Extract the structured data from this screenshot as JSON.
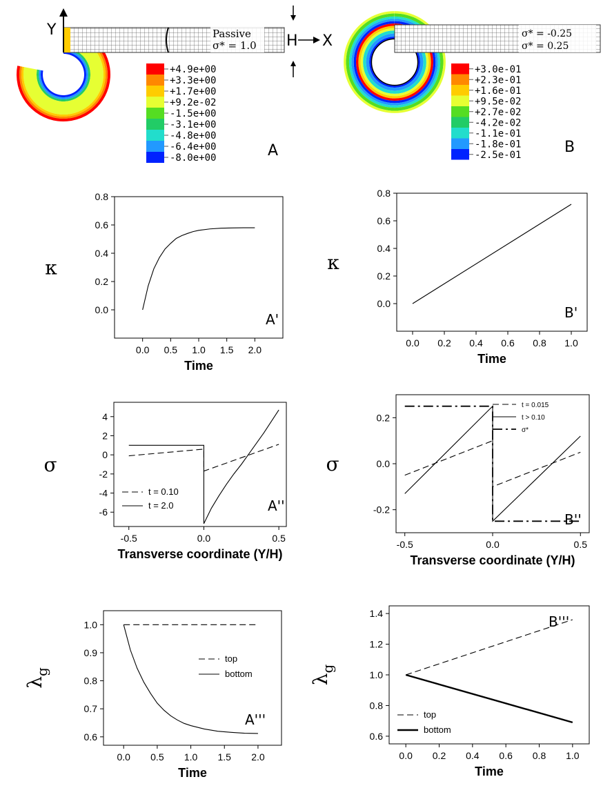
{
  "panels": {
    "A": {
      "label": "A",
      "beam_label": "Passive",
      "beam_sigma": "σ* = 1.0",
      "axis_y": "Y",
      "axis_x": "X",
      "thickness": "H",
      "legend": [
        "+4.9e+00",
        "+3.3e+00",
        "+1.7e+00",
        "+9.2e-02",
        "-1.5e+00",
        "-3.1e+00",
        "-4.8e+00",
        "-6.4e+00",
        "-8.0e+00"
      ]
    },
    "B": {
      "label": "B",
      "beam_sigma_top": "σ* = -0.25",
      "beam_sigma_bottom": "σ* = 0.25",
      "legend": [
        "+3.0e-01",
        "+2.3e-01",
        "+1.6e-01",
        "+9.5e-02",
        "+2.7e-02",
        "-4.2e-02",
        "-1.1e-01",
        "-1.8e-01",
        "-2.5e-01"
      ]
    }
  },
  "colormap": [
    "#ff0000",
    "#ff8800",
    "#ffcc00",
    "#e6ff33",
    "#55dd22",
    "#22cc66",
    "#22ddcc",
    "#2299ff",
    "#0022ff"
  ],
  "chart_data": [
    {
      "id": "A1",
      "panel_label": "A'",
      "type": "line",
      "xlabel": "Time",
      "ylabel": "κ",
      "xlim": [
        -0.5,
        2.5
      ],
      "ylim": [
        -0.2,
        0.8
      ],
      "xticks": [
        "0.0",
        "0.5",
        "1.0",
        "1.5",
        "2.0"
      ],
      "xtick_values": [
        0,
        0.5,
        1,
        1.5,
        2
      ],
      "yticks": [
        "0.0",
        "0.2",
        "0.4",
        "0.6",
        "0.8"
      ],
      "ytick_values": [
        0,
        0.2,
        0.4,
        0.6,
        0.8
      ],
      "series": [
        {
          "style": "solid",
          "x": [
            0,
            0.1,
            0.2,
            0.3,
            0.4,
            0.5,
            0.6,
            0.7,
            0.8,
            0.9,
            1.0,
            1.2,
            1.4,
            1.6,
            1.8,
            2.0
          ],
          "y": [
            0,
            0.17,
            0.29,
            0.37,
            0.43,
            0.47,
            0.505,
            0.525,
            0.54,
            0.553,
            0.562,
            0.572,
            0.577,
            0.579,
            0.58,
            0.58
          ]
        }
      ]
    },
    {
      "id": "B1",
      "panel_label": "B'",
      "type": "line",
      "xlabel": "Time",
      "ylabel": "κ",
      "xlim": [
        -0.1,
        1.1
      ],
      "ylim": [
        -0.2,
        0.8
      ],
      "xticks": [
        "0.0",
        "0.2",
        "0.4",
        "0.6",
        "0.8",
        "1.0"
      ],
      "xtick_values": [
        0,
        0.2,
        0.4,
        0.6,
        0.8,
        1
      ],
      "yticks": [
        "0.0",
        "0.2",
        "0.4",
        "0.6",
        "0.8"
      ],
      "ytick_values": [
        0,
        0.2,
        0.4,
        0.6,
        0.8
      ],
      "series": [
        {
          "style": "solid",
          "x": [
            0,
            1.0
          ],
          "y": [
            0,
            0.72
          ]
        }
      ]
    },
    {
      "id": "A2",
      "panel_label": "A''",
      "type": "line",
      "xlabel": "Transverse coordinate (Y/H)",
      "ylabel": "σ",
      "xlim": [
        -0.6,
        0.55
      ],
      "ylim": [
        -7.5,
        5.5
      ],
      "xticks": [
        "-0.5",
        "0.0",
        "0.5"
      ],
      "xtick_values": [
        -0.5,
        0,
        0.5
      ],
      "yticks": [
        "-6",
        "-4",
        "-2",
        "0",
        "2",
        "4"
      ],
      "ytick_values": [
        -6,
        -4,
        -2,
        0,
        2,
        4
      ],
      "legend_position": "lower-left",
      "series": [
        {
          "name": "t = 0.10",
          "style": "dashed",
          "x": [
            -0.5,
            0,
            0,
            0.5
          ],
          "y": [
            -0.1,
            0.6,
            -1.7,
            1.1
          ]
        },
        {
          "name": "t = 2.0",
          "style": "solid",
          "x": [
            -0.5,
            0,
            0,
            0,
            0.05,
            0.1,
            0.15,
            0.2,
            0.25,
            0.3,
            0.35,
            0.4,
            0.45,
            0.5
          ],
          "y": [
            1.0,
            1.0,
            1.0,
            -7.2,
            -5.6,
            -4.3,
            -3.1,
            -2.0,
            -1.0,
            0.1,
            1.2,
            2.3,
            3.5,
            4.7
          ]
        }
      ]
    },
    {
      "id": "B2",
      "panel_label": "B''",
      "type": "line",
      "xlabel": "Transverse coordinate (Y/H)",
      "ylabel": "σ",
      "xlim": [
        -0.55,
        0.55
      ],
      "ylim": [
        -0.3,
        0.3
      ],
      "xticks": [
        "-0.5",
        "0.0",
        "0.5"
      ],
      "xtick_values": [
        -0.5,
        0,
        0.5
      ],
      "yticks": [
        "-0.2",
        "0.0",
        "0.2"
      ],
      "ytick_values": [
        -0.2,
        0,
        0.2
      ],
      "legend_position": "top-right",
      "series": [
        {
          "name": "t = 0.015",
          "style": "dashed",
          "x": [
            -0.5,
            0,
            0,
            0.5
          ],
          "y": [
            -0.05,
            0.1,
            -0.1,
            0.05
          ]
        },
        {
          "name": "t > 0.10",
          "style": "solid",
          "x": [
            -0.5,
            0,
            0,
            0.5
          ],
          "y": [
            -0.13,
            0.25,
            -0.25,
            0.12
          ]
        },
        {
          "name": "σ*",
          "style": "dashdot",
          "x": [
            -0.5,
            0,
            0,
            0.5
          ],
          "y": [
            0.25,
            0.25,
            -0.25,
            -0.25
          ]
        }
      ]
    },
    {
      "id": "A3",
      "panel_label": "A'''",
      "type": "line",
      "xlabel": "Time",
      "ylabel": "λ_g",
      "ylabel_main": "λ",
      "ylabel_sub": "g",
      "xlim": [
        -0.3,
        2.35
      ],
      "ylim": [
        0.57,
        1.05
      ],
      "xticks": [
        "0.0",
        "0.5",
        "1.0",
        "1.5",
        "2.0"
      ],
      "xtick_values": [
        0,
        0.5,
        1,
        1.5,
        2
      ],
      "yticks": [
        "0.6",
        "0.7",
        "0.8",
        "0.9",
        "1.0"
      ],
      "ytick_values": [
        0.6,
        0.7,
        0.8,
        0.9,
        1.0
      ],
      "legend_position": "top-right",
      "series": [
        {
          "name": "top",
          "style": "dashed",
          "x": [
            0,
            2.0
          ],
          "y": [
            1.0,
            1.0
          ]
        },
        {
          "name": "bottom",
          "style": "solid",
          "x": [
            0,
            0.1,
            0.2,
            0.3,
            0.4,
            0.5,
            0.6,
            0.7,
            0.8,
            0.9,
            1.0,
            1.2,
            1.4,
            1.6,
            1.8,
            2.0
          ],
          "y": [
            1.0,
            0.91,
            0.845,
            0.795,
            0.755,
            0.72,
            0.695,
            0.675,
            0.66,
            0.648,
            0.64,
            0.628,
            0.62,
            0.616,
            0.613,
            0.612
          ]
        }
      ]
    },
    {
      "id": "B3",
      "panel_label": "B'''",
      "type": "line",
      "xlabel": "Time",
      "ylabel": "λ_g",
      "ylabel_main": "λ",
      "ylabel_sub": "g",
      "xlim": [
        -0.1,
        1.1
      ],
      "ylim": [
        0.55,
        1.45
      ],
      "xticks": [
        "0.0",
        "0.2",
        "0.4",
        "0.6",
        "0.8",
        "1.0"
      ],
      "xtick_values": [
        0,
        0.2,
        0.4,
        0.6,
        0.8,
        1
      ],
      "yticks": [
        "0.6",
        "0.8",
        "1.0",
        "1.2",
        "1.4"
      ],
      "ytick_values": [
        0.6,
        0.8,
        1.0,
        1.2,
        1.4
      ],
      "legend_position": "lower-left",
      "series": [
        {
          "name": "top",
          "style": "dashed",
          "x": [
            0,
            1.0
          ],
          "y": [
            1.0,
            1.36
          ]
        },
        {
          "name": "bottom",
          "style": "thick",
          "x": [
            0,
            1.0
          ],
          "y": [
            1.0,
            0.69
          ]
        }
      ]
    }
  ]
}
